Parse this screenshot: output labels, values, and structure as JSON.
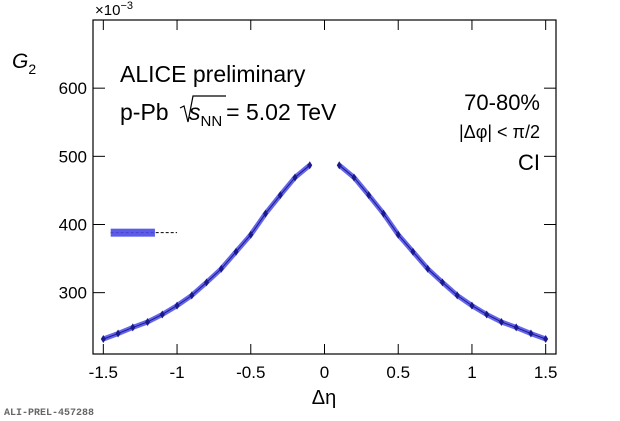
{
  "chart_data": {
    "type": "line",
    "title": "ALICE preliminary",
    "system": "p-Pb",
    "energy_sqrt": "s",
    "energy_sub": "NN",
    "energy_value": "= 5.02 TeV",
    "centrality": "70-80%",
    "cut": "|Δφ| < π/2",
    "charge": "CI",
    "y_label": "G",
    "y_label_sub": "2",
    "y_multiplier": "×10",
    "y_multiplier_exp": "−3",
    "x_label": "Δη",
    "figure_id": "ALI-PREL-457288",
    "x": [
      -1.5,
      -1.4,
      -1.3,
      -1.2,
      -1.1,
      -1.0,
      -0.9,
      -0.8,
      -0.7,
      -0.6,
      -0.5,
      -0.4,
      -0.3,
      -0.2,
      -0.1,
      0,
      0.1,
      0.2,
      0.3,
      0.4,
      0.5,
      0.6,
      0.7,
      0.8,
      0.9,
      1.0,
      1.1,
      1.2,
      1.3,
      1.4,
      1.5
    ],
    "series": [
      {
        "name": "G2",
        "color": "#1a1a8c",
        "band_color": "#4a4ae6",
        "values": [
          232,
          240,
          249,
          257,
          268,
          281,
          296,
          315,
          335,
          360,
          385,
          416,
          443,
          469,
          487,
          null,
          487,
          469,
          443,
          416,
          385,
          360,
          335,
          315,
          296,
          281,
          268,
          257,
          249,
          240,
          232
        ]
      }
    ],
    "syst_box": {
      "y": 388,
      "x": [
        -1.45,
        -1.15
      ],
      "dash_end": -1.0,
      "color": "#4a4ae6"
    },
    "xlim": [
      -1.57,
      1.57
    ],
    "ylim": [
      210,
      700
    ],
    "xticks": [
      -1.5,
      -1,
      -0.5,
      0,
      0.5,
      1,
      1.5
    ],
    "yticks": [
      300,
      400,
      500,
      600
    ]
  }
}
